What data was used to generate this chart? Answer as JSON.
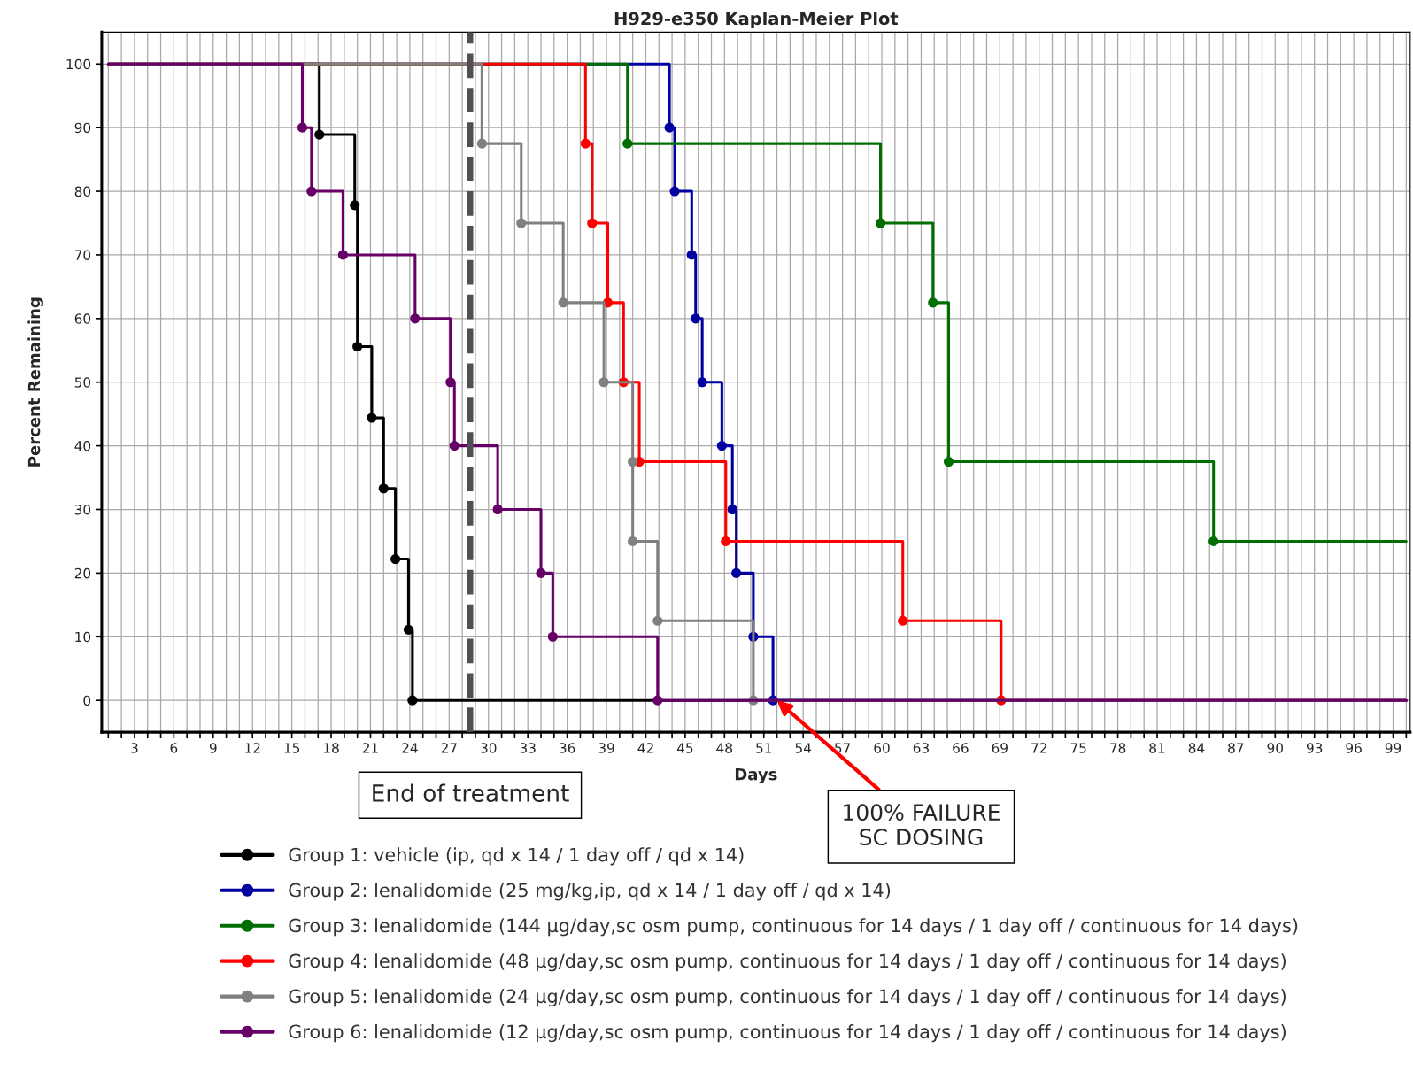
{
  "chart_data": {
    "type": "step",
    "title": "H929-e350 Kaplan-Meier Plot",
    "xlabel": "Days",
    "ylabel": "Percent Remaining",
    "xlim": [
      0.5,
      100.3
    ],
    "ylim": [
      -5,
      105
    ],
    "xticks": [
      {
        "value": 1,
        "label": null
      },
      {
        "value": 2,
        "label": null
      },
      3,
      {
        "value": 4,
        "label": null
      },
      {
        "value": 5,
        "label": null
      },
      6,
      {
        "value": 7,
        "label": null
      },
      {
        "value": 8,
        "label": null
      },
      9,
      {
        "value": 10,
        "label": null
      },
      {
        "value": 11,
        "label": null
      },
      12,
      {
        "value": 13,
        "label": null
      },
      {
        "value": 14,
        "label": null
      },
      15,
      {
        "value": 16,
        "label": null
      },
      {
        "value": 17,
        "label": null
      },
      18,
      {
        "value": 19,
        "label": null
      },
      {
        "value": 20,
        "label": null
      },
      21,
      {
        "value": 22,
        "label": null
      },
      {
        "value": 23,
        "label": null
      },
      24,
      {
        "value": 25,
        "label": null
      },
      {
        "value": 26,
        "label": null
      },
      27,
      {
        "value": 28,
        "label": null
      },
      {
        "value": 29,
        "label": null
      },
      30,
      {
        "value": 31,
        "label": null
      },
      {
        "value": 32,
        "label": null
      },
      33,
      {
        "value": 34,
        "label": null
      },
      {
        "value": 35,
        "label": null
      },
      36,
      {
        "value": 37,
        "label": null
      },
      {
        "value": 38,
        "label": null
      },
      39,
      {
        "value": 40,
        "label": null
      },
      {
        "value": 41,
        "label": null
      },
      42,
      {
        "value": 43,
        "label": null
      },
      {
        "value": 44,
        "label": null
      },
      45,
      {
        "value": 46,
        "label": null
      },
      {
        "value": 47,
        "label": null
      },
      48,
      {
        "value": 49,
        "label": null
      },
      {
        "value": 50,
        "label": null
      },
      51,
      {
        "value": 52,
        "label": null
      },
      {
        "value": 53,
        "label": null
      },
      54,
      {
        "value": 55,
        "label": null
      },
      {
        "value": 56,
        "label": null
      },
      57,
      {
        "value": 58,
        "label": null
      },
      {
        "value": 59,
        "label": null
      },
      60,
      {
        "value": 61,
        "label": null
      },
      {
        "value": 62,
        "label": null
      },
      63,
      {
        "value": 64,
        "label": null
      },
      {
        "value": 65,
        "label": null
      },
      66,
      {
        "value": 67,
        "label": null
      },
      {
        "value": 68,
        "label": null
      },
      69,
      {
        "value": 70,
        "label": null
      },
      {
        "value": 71,
        "label": null
      },
      72,
      {
        "value": 73,
        "label": null
      },
      {
        "value": 74,
        "label": null
      },
      75,
      {
        "value": 76,
        "label": null
      },
      {
        "value": 77,
        "label": null
      },
      78,
      {
        "value": 79,
        "label": null
      },
      {
        "value": 80,
        "label": null
      },
      81,
      {
        "value": 82,
        "label": null
      },
      {
        "value": 83,
        "label": null
      },
      84,
      {
        "value": 85,
        "label": null
      },
      {
        "value": 86,
        "label": null
      },
      87,
      {
        "value": 88,
        "label": null
      },
      {
        "value": 89,
        "label": null
      },
      90,
      {
        "value": 91,
        "label": null
      },
      {
        "value": 92,
        "label": null
      },
      93,
      {
        "value": 94,
        "label": null
      },
      {
        "value": 95,
        "label": null
      },
      96,
      {
        "value": 97,
        "label": null
      },
      {
        "value": 98,
        "label": null
      },
      99,
      {
        "value": 100,
        "label": null
      }
    ],
    "yticks": [
      0,
      10,
      20,
      30,
      40,
      50,
      60,
      70,
      80,
      90,
      100
    ],
    "grid": true,
    "legend": "bottom",
    "marker": "circle",
    "line_style": "solid",
    "series": [
      {
        "name": "Group 1: vehicle (ip, qd x 14 / 1 day off / qd x 14)",
        "color": "#000000",
        "x": [
          1,
          17.1,
          19.8,
          20.0,
          21.1,
          22.0,
          22.9,
          23.9,
          24.2,
          100
        ],
        "values": [
          100,
          88.9,
          77.8,
          55.6,
          44.4,
          33.3,
          22.2,
          11.1,
          0,
          0
        ]
      },
      {
        "name": "Group 2: lenalidomide (25 mg/kg,ip, qd x 14 / 1 day off / qd x 14)",
        "color": "#0000a0",
        "x": [
          1,
          43.8,
          44.2,
          45.5,
          45.8,
          46.3,
          47.8,
          48.6,
          48.9,
          50.2,
          51.7,
          100
        ],
        "values": [
          100,
          90,
          80,
          70,
          60,
          50,
          40,
          30,
          20,
          10,
          0,
          0
        ]
      },
      {
        "name": "Group 3: lenalidomide (144 µg/day,sc osm pump, continuous for 14 days / 1 day off / continuous for 14 days)",
        "color": "#006e00",
        "x": [
          1,
          40.6,
          59.9,
          63.9,
          65.1,
          85.3,
          100
        ],
        "values": [
          100,
          87.5,
          75,
          62.5,
          37.5,
          25,
          25
        ]
      },
      {
        "name": "Group 4: lenalidomide (48 µg/day,sc osm pump, continuous for 14 days / 1 day off / continuous for 14 days)",
        "color": "#ff0000",
        "x": [
          1,
          37.4,
          37.9,
          39.1,
          40.3,
          41.5,
          48.1,
          61.6,
          69.1,
          100
        ],
        "values": [
          100,
          87.5,
          75,
          62.5,
          50,
          37.5,
          25,
          12.5,
          0,
          0
        ]
      },
      {
        "name": "Group 5: lenalidomide (24 µg/day,sc osm pump, continuous for 14 days / 1 day off / continuous for 14 days)",
        "color": "#808080",
        "x": [
          1,
          29.5,
          32.5,
          35.7,
          38.8,
          41.0,
          41.0,
          42.9,
          50.2,
          100
        ],
        "values": [
          100,
          87.5,
          75,
          62.5,
          50,
          37.5,
          25,
          12.5,
          0,
          0
        ]
      },
      {
        "name": "Group 6: lenalidomide (12 µg/day,sc osm pump, continuous for 14 days / 1 day off / continuous for 14 days)",
        "color": "#660066",
        "x": [
          1,
          15.8,
          16.5,
          18.9,
          24.4,
          27.1,
          27.4,
          30.7,
          34.0,
          34.9,
          42.9,
          100
        ],
        "values": [
          100,
          90,
          80,
          70,
          60,
          50,
          40,
          30,
          20,
          10,
          0,
          0
        ]
      }
    ],
    "ref_lines": [
      {
        "axis": "x",
        "value": 28.6,
        "label": "End of treatment",
        "color": "#505050",
        "line_style": "dashed"
      }
    ],
    "annotations": [
      {
        "text": "100% FAILURE\nSC DOSING",
        "x": 52,
        "y": 0
      }
    ]
  }
}
